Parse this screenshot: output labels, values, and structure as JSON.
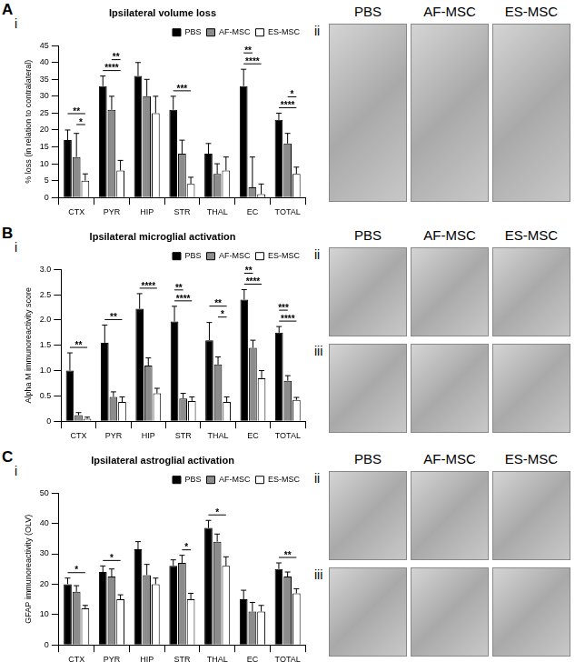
{
  "chart_data": [
    {
      "type": "bar",
      "panel": "A",
      "subpanels": [
        "i",
        "ii"
      ],
      "title": "Ipsilateral volume loss",
      "y_label": "% loss (in relation to contralateral)",
      "categories": [
        "CTX",
        "PYR",
        "HIP",
        "STR",
        "THAL",
        "EC",
        "TOTAL"
      ],
      "series": [
        {
          "name": "PBS",
          "color": "#000000",
          "values": [
            17,
            33,
            36,
            26,
            13,
            33,
            23
          ],
          "errors": [
            3,
            3,
            4,
            4,
            3,
            5,
            2
          ]
        },
        {
          "name": "AF-MSC",
          "color": "#8c8c8c",
          "values": [
            12,
            26,
            30,
            13,
            7,
            3,
            16
          ],
          "errors": [
            7,
            4,
            5,
            4,
            3,
            9,
            3
          ]
        },
        {
          "name": "ES-MSC",
          "color": "#ffffff",
          "values": [
            5,
            8,
            25,
            4,
            8,
            1,
            7
          ],
          "errors": [
            2,
            3,
            5,
            2,
            4,
            3,
            2
          ]
        }
      ],
      "ylim": [
        0,
        45
      ],
      "yticks": [
        0,
        5,
        10,
        15,
        20,
        25,
        30,
        35,
        40,
        45
      ],
      "grid": false,
      "legend": "upper right",
      "annotations": [
        {
          "category": "CTX",
          "text": "*",
          "from": "AF-MSC",
          "to": "ES-MSC"
        },
        {
          "category": "CTX",
          "text": "**",
          "from": "PBS",
          "to": "ES-MSC"
        },
        {
          "category": "PYR",
          "text": "****",
          "from": "PBS",
          "to": "ES-MSC"
        },
        {
          "category": "PYR",
          "text": "**",
          "from": "AF-MSC",
          "to": "ES-MSC"
        },
        {
          "category": "STR",
          "text": "***",
          "from": "PBS",
          "to": "ES-MSC"
        },
        {
          "category": "EC",
          "text": "****",
          "from": "PBS",
          "to": "ES-MSC"
        },
        {
          "category": "EC",
          "text": "**",
          "from": "PBS",
          "to": "AF-MSC"
        },
        {
          "category": "TOTAL",
          "text": "****",
          "from": "PBS",
          "to": "ES-MSC"
        },
        {
          "category": "TOTAL",
          "text": "*",
          "from": "AF-MSC",
          "to": "ES-MSC"
        }
      ],
      "image_labels": [
        "PBS",
        "AF-MSC",
        "ES-MSC"
      ]
    },
    {
      "type": "bar",
      "panel": "B",
      "subpanels": [
        "i",
        "ii",
        "iii"
      ],
      "title": "Ipsilateral microglial activation",
      "y_label": "Alpha M immunoreactivity score",
      "categories": [
        "CTX",
        "PYR",
        "HIP",
        "STR",
        "THAL",
        "EC",
        "TOTAL"
      ],
      "series": [
        {
          "name": "PBS",
          "color": "#000000",
          "values": [
            1.0,
            1.55,
            2.22,
            1.97,
            1.6,
            2.4,
            1.75
          ],
          "errors": [
            0.35,
            0.35,
            0.3,
            0.3,
            0.35,
            0.2,
            0.12
          ]
        },
        {
          "name": "AF-MSC",
          "color": "#8c8c8c",
          "values": [
            0.12,
            0.48,
            1.1,
            0.45,
            1.12,
            1.45,
            0.8
          ],
          "errors": [
            0.05,
            0.1,
            0.15,
            0.1,
            0.15,
            0.15,
            0.1
          ]
        },
        {
          "name": "ES-MSC",
          "color": "#ffffff",
          "values": [
            0.05,
            0.38,
            0.55,
            0.4,
            0.38,
            0.85,
            0.42
          ],
          "errors": [
            0.03,
            0.1,
            0.1,
            0.08,
            0.1,
            0.15,
            0.05
          ]
        }
      ],
      "ylim": [
        0,
        3
      ],
      "yticks": [
        0,
        0.5,
        1,
        1.5,
        2,
        2.5,
        3
      ],
      "grid": false,
      "legend": "upper right",
      "annotations": [
        {
          "category": "CTX",
          "text": "**",
          "from": "PBS",
          "to": "ES-MSC"
        },
        {
          "category": "PYR",
          "text": "**",
          "from": "PBS",
          "to": "ES-MSC"
        },
        {
          "category": "HIP",
          "text": "****",
          "from": "PBS",
          "to": "ES-MSC"
        },
        {
          "category": "STR",
          "text": "****",
          "from": "PBS",
          "to": "ES-MSC"
        },
        {
          "category": "STR",
          "text": "**",
          "from": "PBS",
          "to": "AF-MSC"
        },
        {
          "category": "THAL",
          "text": "*",
          "from": "AF-MSC",
          "to": "ES-MSC"
        },
        {
          "category": "THAL",
          "text": "**",
          "from": "PBS",
          "to": "ES-MSC"
        },
        {
          "category": "EC",
          "text": "****",
          "from": "PBS",
          "to": "ES-MSC"
        },
        {
          "category": "EC",
          "text": "**",
          "from": "PBS",
          "to": "AF-MSC"
        },
        {
          "category": "TOTAL",
          "text": "****",
          "from": "PBS",
          "to": "ES-MSC"
        },
        {
          "category": "TOTAL",
          "text": "***",
          "from": "PBS",
          "to": "AF-MSC"
        }
      ],
      "image_labels": [
        "PBS",
        "AF-MSC",
        "ES-MSC"
      ]
    },
    {
      "type": "bar",
      "panel": "C",
      "subpanels": [
        "i",
        "ii",
        "iii"
      ],
      "title": "Ipsilateral astroglial activation",
      "y_label": "GFAP immunoreactivity (OLV)",
      "categories": [
        "CTX",
        "PYR",
        "HIP",
        "STR",
        "THAL",
        "EC",
        "TOTAL"
      ],
      "series": [
        {
          "name": "PBS",
          "color": "#000000",
          "values": [
            20,
            24,
            31.5,
            26,
            38.5,
            15,
            25
          ],
          "errors": [
            2,
            2,
            2.5,
            2,
            2.5,
            3,
            2
          ]
        },
        {
          "name": "AF-MSC",
          "color": "#8c8c8c",
          "values": [
            17.5,
            22.5,
            23,
            27,
            34,
            11,
            22.5
          ],
          "errors": [
            2,
            2.5,
            3.5,
            2.5,
            2.5,
            3,
            1.5
          ]
        },
        {
          "name": "ES-MSC",
          "color": "#ffffff",
          "values": [
            12,
            15,
            20,
            15,
            26,
            11,
            17
          ],
          "errors": [
            1,
            1.5,
            2,
            2,
            3,
            2,
            1.5
          ]
        }
      ],
      "ylim": [
        0,
        50
      ],
      "yticks": [
        0,
        10,
        20,
        30,
        40,
        50
      ],
      "grid": false,
      "legend": "upper right",
      "annotations": [
        {
          "category": "CTX",
          "text": "*",
          "from": "PBS",
          "to": "ES-MSC"
        },
        {
          "category": "PYR",
          "text": "*",
          "from": "PBS",
          "to": "ES-MSC"
        },
        {
          "category": "STR",
          "text": "*",
          "from": "AF-MSC",
          "to": "ES-MSC"
        },
        {
          "category": "THAL",
          "text": "*",
          "from": "PBS",
          "to": "ES-MSC"
        },
        {
          "category": "TOTAL",
          "text": "**",
          "from": "PBS",
          "to": "ES-MSC"
        }
      ],
      "image_labels": [
        "PBS",
        "AF-MSC",
        "ES-MSC"
      ]
    }
  ]
}
